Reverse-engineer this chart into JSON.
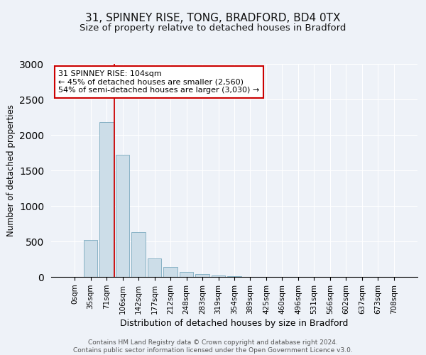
{
  "title": "31, SPINNEY RISE, TONG, BRADFORD, BD4 0TX",
  "subtitle": "Size of property relative to detached houses in Bradford",
  "xlabel": "Distribution of detached houses by size in Bradford",
  "ylabel": "Number of detached properties",
  "footnote": "Contains HM Land Registry data © Crown copyright and database right 2024.\nContains public sector information licensed under the Open Government Licence v3.0.",
  "bar_labels": [
    "0sqm",
    "35sqm",
    "71sqm",
    "106sqm",
    "142sqm",
    "177sqm",
    "212sqm",
    "248sqm",
    "283sqm",
    "319sqm",
    "354sqm",
    "389sqm",
    "425sqm",
    "460sqm",
    "496sqm",
    "531sqm",
    "566sqm",
    "602sqm",
    "637sqm",
    "673sqm",
    "708sqm"
  ],
  "bar_values": [
    5,
    520,
    2180,
    1720,
    630,
    265,
    140,
    75,
    40,
    20,
    10,
    5,
    3,
    2,
    1,
    1,
    0,
    0,
    0,
    0,
    0
  ],
  "bar_color": "#ccdde8",
  "bar_edge_color": "#7aaabf",
  "vline_x": 2.5,
  "vline_color": "#cc0000",
  "annotation_text": "31 SPINNEY RISE: 104sqm\n← 45% of detached houses are smaller (2,560)\n54% of semi-detached houses are larger (3,030) →",
  "annotation_box_color": "#ffffff",
  "annotation_box_edge": "#cc0000",
  "ylim": [
    0,
    3000
  ],
  "background_color": "#eef2f8",
  "plot_background": "#eef2f8",
  "title_fontsize": 11,
  "subtitle_fontsize": 9.5,
  "tick_fontsize": 7.5
}
